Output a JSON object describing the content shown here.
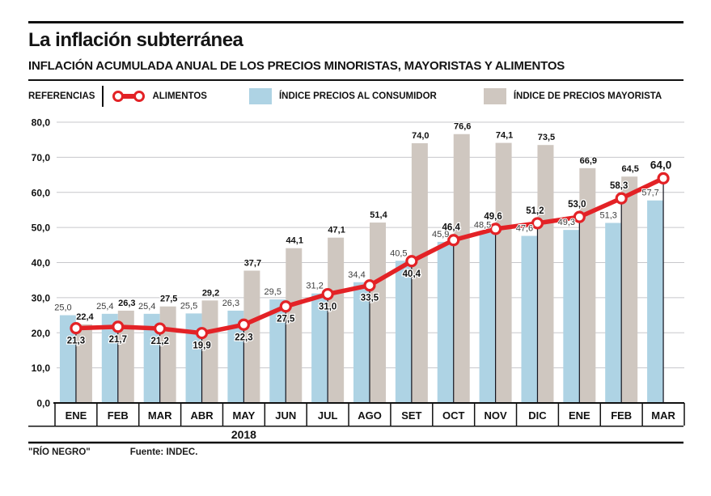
{
  "header": {
    "title": "La inflación subterránea",
    "subtitle": "INFLACIÓN ACUMULADA ANUAL DE LOS PRECIOS MINORISTAS, MAYORISTAS Y ALIMENTOS"
  },
  "legend": {
    "label": "REFERENCIAS",
    "items": [
      {
        "name": "alimentos",
        "label": "ALIMENTOS",
        "type": "line",
        "color": "#e32226",
        "icon": "line-with-points-icon"
      },
      {
        "name": "ipc",
        "label": "ÍNDICE PRECIOS AL CONSUMIDOR",
        "type": "bar",
        "color": "#aed3e4",
        "icon": "blue-swatch-icon"
      },
      {
        "name": "mayorista",
        "label": "ÍNDICE DE PRECIOS MAYORISTA",
        "type": "bar",
        "color": "#cfc7c0",
        "icon": "gray-swatch-icon"
      }
    ]
  },
  "chart_data": {
    "type": "bar",
    "subtype": "grouped-bars-with-line-overlay",
    "categories": [
      "ENE",
      "FEB",
      "MAR",
      "ABR",
      "MAY",
      "JUN",
      "JUL",
      "AGO",
      "SET",
      "OCT",
      "NOV",
      "DIC",
      "ENE",
      "FEB",
      "MAR"
    ],
    "year_label": "2018",
    "series": [
      {
        "name": "ÍNDICE PRECIOS AL CONSUMIDOR",
        "type": "bar",
        "color": "#aed3e4",
        "values": [
          25.0,
          25.4,
          25.4,
          25.5,
          26.3,
          29.5,
          31.2,
          34.4,
          40.5,
          45.9,
          48.5,
          47.6,
          49.3,
          51.3,
          57.7
        ]
      },
      {
        "name": "ÍNDICE DE PRECIOS MAYORISTA",
        "type": "bar",
        "color": "#cfc7c0",
        "values": [
          22.4,
          26.3,
          27.5,
          29.2,
          37.7,
          44.1,
          47.1,
          51.4,
          74.0,
          76.6,
          74.1,
          73.5,
          66.9,
          64.5,
          null
        ]
      },
      {
        "name": "ALIMENTOS",
        "type": "line",
        "color": "#e32226",
        "values": [
          21.3,
          21.7,
          21.2,
          19.9,
          22.3,
          27.5,
          31.0,
          33.5,
          40.4,
          46.4,
          49.6,
          51.2,
          53.0,
          58.3,
          64.0
        ]
      }
    ],
    "ylabel": "",
    "xlabel": "",
    "ylim": [
      0,
      80
    ],
    "ytick_step": 10,
    "ytick_labels": [
      "0,0",
      "10,0",
      "20,0",
      "30,0",
      "40,0",
      "50,0",
      "60,0",
      "70,0",
      "80,0"
    ],
    "grid": true,
    "legend_position": "top",
    "decimal_separator": ",",
    "grid_color": "#c7c7cb"
  },
  "footer": {
    "credit": "\"RÍO NEGRO\"",
    "source": "Fuente: INDEC."
  }
}
